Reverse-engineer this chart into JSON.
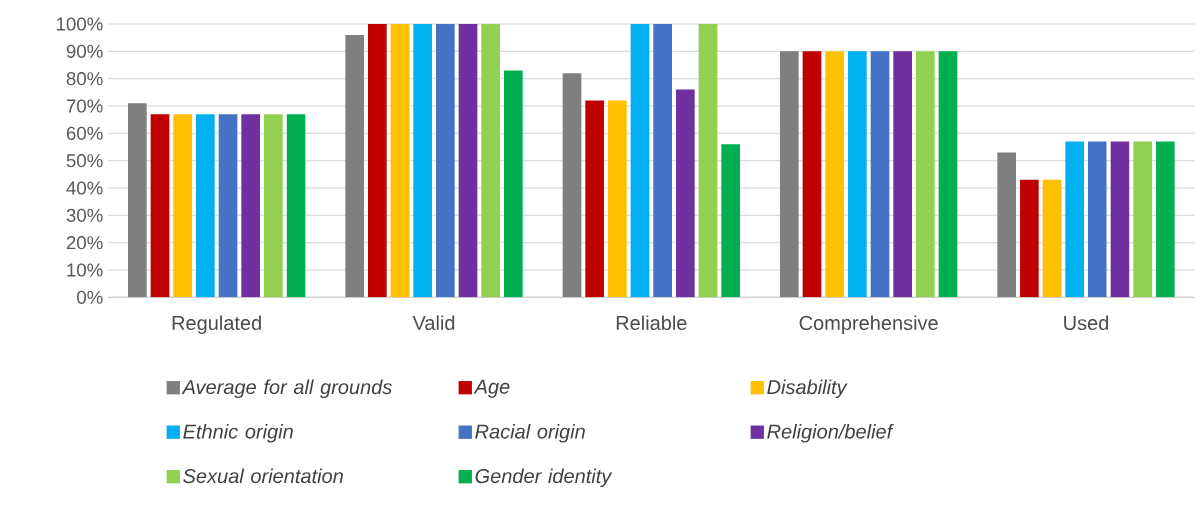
{
  "chart_data": {
    "type": "bar",
    "categories": [
      "Regulated",
      "Valid",
      "Reliable",
      "Comprehensive",
      "Used"
    ],
    "series": [
      {
        "name": "Average for all grounds",
        "color": "#7f7f7f",
        "values": [
          71,
          96,
          82,
          90,
          53
        ]
      },
      {
        "name": "Age",
        "color": "#c00000",
        "values": [
          67,
          100,
          72,
          90,
          43
        ]
      },
      {
        "name": "Disability",
        "color": "#ffc000",
        "values": [
          67,
          100,
          72,
          90,
          43
        ]
      },
      {
        "name": "Ethnic origin",
        "color": "#00b0f0",
        "values": [
          67,
          100,
          100,
          90,
          57
        ]
      },
      {
        "name": "Racial origin",
        "color": "#4472c4",
        "values": [
          67,
          100,
          100,
          90,
          57
        ]
      },
      {
        "name": "Religion/belief",
        "color": "#7030a0",
        "values": [
          67,
          100,
          76,
          90,
          57
        ]
      },
      {
        "name": "Sexual orientation",
        "color": "#92d050",
        "values": [
          67,
          100,
          100,
          90,
          57
        ]
      },
      {
        "name": "Gender identity",
        "color": "#00b050",
        "values": [
          67,
          83,
          56,
          90,
          57
        ]
      }
    ],
    "ylim": [
      0,
      100
    ],
    "yticks": [
      {
        "value": 0,
        "label": "0%"
      },
      {
        "value": 10,
        "label": "10%"
      },
      {
        "value": 20,
        "label": "20%"
      },
      {
        "value": 30,
        "label": "30%"
      },
      {
        "value": 40,
        "label": "40%"
      },
      {
        "value": 50,
        "label": "50%"
      },
      {
        "value": 60,
        "label": "60%"
      },
      {
        "value": 70,
        "label": "70%"
      },
      {
        "value": 80,
        "label": "80%"
      },
      {
        "value": 90,
        "label": "90%"
      },
      {
        "value": 100,
        "label": "100%"
      }
    ],
    "grid": "y",
    "legend": "bottom"
  }
}
